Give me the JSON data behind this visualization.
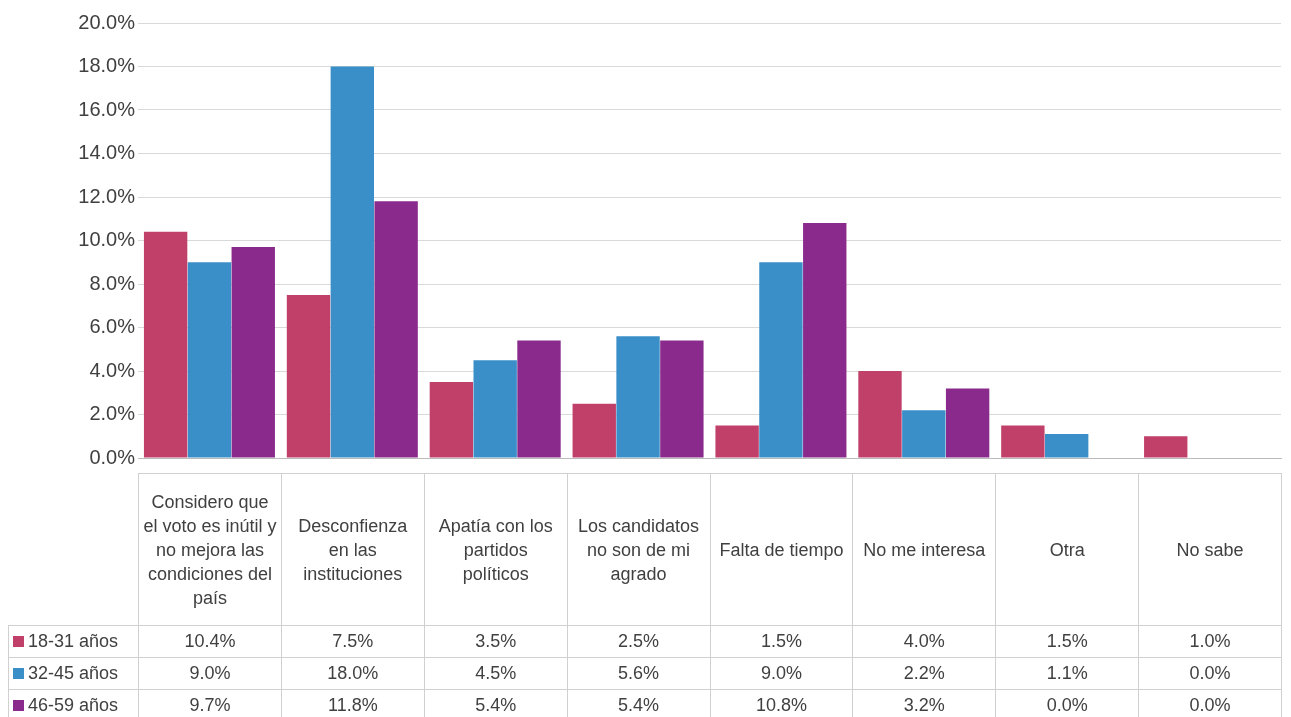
{
  "chart_data": {
    "type": "bar",
    "categories": [
      "Considero que el voto es inútil y no mejora las condiciones del país",
      "Desconfienza en las instituciones",
      "Apatía con los partidos políticos",
      "Los candidatos no son de mi agrado",
      "Falta de tiempo",
      "No me interesa",
      "Otra",
      "No sabe"
    ],
    "series": [
      {
        "name": "18-31 años",
        "color": "#c0406a",
        "values": [
          10.4,
          7.5,
          3.5,
          2.5,
          1.5,
          4.0,
          1.5,
          1.0
        ],
        "value_labels": [
          "10.4%",
          "7.5%",
          "3.5%",
          "2.5%",
          "1.5%",
          "4.0%",
          "1.5%",
          "1.0%"
        ]
      },
      {
        "name": "32-45 años",
        "color": "#3a8fc8",
        "values": [
          9.0,
          18.0,
          4.5,
          5.6,
          9.0,
          2.2,
          1.1,
          0.0
        ],
        "value_labels": [
          "9.0%",
          "18.0%",
          "4.5%",
          "5.6%",
          "9.0%",
          "2.2%",
          "1.1%",
          "0.0%"
        ]
      },
      {
        "name": "46-59 años",
        "color": "#8a2a8c",
        "values": [
          9.7,
          11.8,
          5.4,
          5.4,
          10.8,
          3.2,
          0.0,
          0.0
        ],
        "value_labels": [
          "9.7%",
          "11.8%",
          "5.4%",
          "5.4%",
          "10.8%",
          "3.2%",
          "0.0%",
          "0.0%"
        ]
      }
    ],
    "ylim": [
      0,
      20
    ],
    "yticks": [
      {
        "value": 0,
        "label": "0.0%"
      },
      {
        "value": 2,
        "label": "2.0%"
      },
      {
        "value": 4,
        "label": "4.0%"
      },
      {
        "value": 6,
        "label": "6.0%"
      },
      {
        "value": 8,
        "label": "8.0%"
      },
      {
        "value": 10,
        "label": "10.0%"
      },
      {
        "value": 12,
        "label": "12.0%"
      },
      {
        "value": 14,
        "label": "14.0%"
      },
      {
        "value": 16,
        "label": "16.0%"
      },
      {
        "value": 18,
        "label": "18.0%"
      },
      {
        "value": 20,
        "label": "20.0%"
      }
    ],
    "grid": "y",
    "legend": "bottom left"
  }
}
